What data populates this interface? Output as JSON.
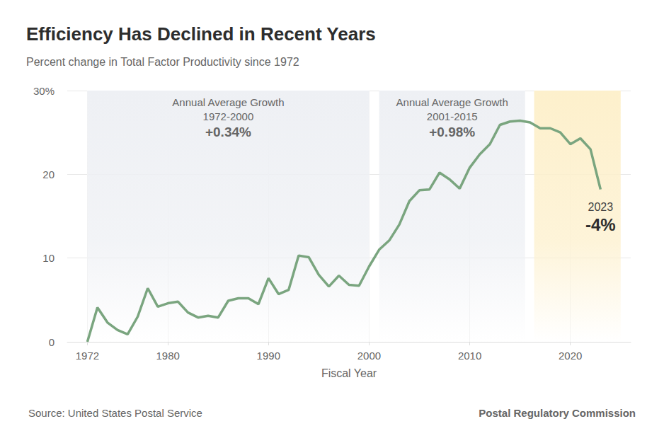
{
  "chart_data": {
    "type": "line",
    "title": "Efficiency Has Declined in Recent Years",
    "subtitle": "Percent change in Total Factor Productivity since 1972",
    "x_label": "Fiscal Year",
    "source": "Source: United States Postal Service",
    "credit": "Postal Regulatory Commission",
    "x": [
      1972,
      1973,
      1974,
      1975,
      1976,
      1977,
      1978,
      1979,
      1980,
      1981,
      1982,
      1983,
      1984,
      1985,
      1986,
      1987,
      1988,
      1989,
      1990,
      1991,
      1992,
      1993,
      1994,
      1995,
      1996,
      1997,
      1998,
      1999,
      2000,
      2001,
      2002,
      2003,
      2004,
      2005,
      2006,
      2007,
      2008,
      2009,
      2010,
      2011,
      2012,
      2013,
      2014,
      2015,
      2016,
      2017,
      2018,
      2019,
      2020,
      2021,
      2022,
      2023
    ],
    "values": [
      0,
      4.1,
      2.3,
      1.4,
      0.9,
      3.0,
      6.4,
      4.2,
      4.6,
      4.8,
      3.5,
      2.9,
      3.1,
      2.9,
      4.9,
      5.2,
      5.2,
      4.5,
      7.6,
      5.7,
      6.2,
      10.3,
      10.1,
      8.0,
      6.6,
      7.9,
      6.8,
      6.7,
      9.0,
      11.0,
      12.1,
      14.0,
      16.8,
      18.1,
      18.2,
      20.2,
      19.4,
      18.3,
      20.8,
      22.4,
      23.6,
      25.9,
      26.3,
      26.4,
      26.2,
      25.5,
      25.5,
      25.0,
      23.6,
      24.3,
      23.0,
      18.2
    ],
    "color": "#7aa57f",
    "xlim": [
      1970,
      2026
    ],
    "xticks": [
      1972,
      1980,
      1990,
      2000,
      2010,
      2020
    ],
    "ylim": [
      0,
      30
    ],
    "yticks": [
      0,
      10,
      20,
      {
        "value": 30,
        "label": "30%"
      }
    ],
    "grid": true,
    "periods": [
      {
        "x": [
          1972,
          2000
        ],
        "color": "#eef0f4",
        "title": "Annual Average Growth",
        "range_label": "1972-2000",
        "growth_label": "+0.34%"
      },
      {
        "x": [
          2001,
          2015.5
        ],
        "color": "#eef0f4",
        "title": "Annual Average Growth",
        "range_label": "2001-2015",
        "growth_label": "+0.98%"
      },
      {
        "x": [
          2016.4,
          2025
        ],
        "color": "#fdf0cc"
      }
    ],
    "annotation": {
      "x": 2023,
      "label": "2023",
      "value_label": "-4%"
    }
  }
}
